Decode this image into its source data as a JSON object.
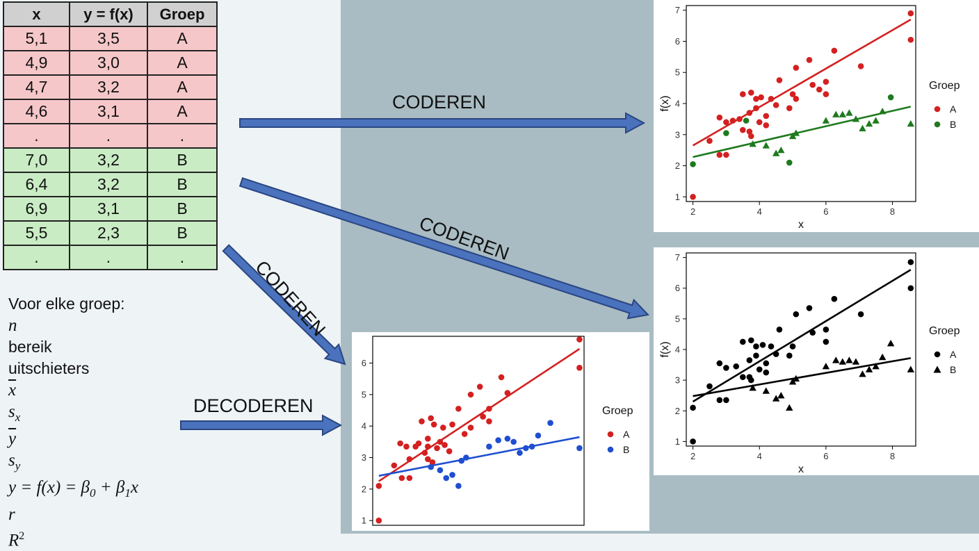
{
  "table": {
    "headers": [
      "x",
      "y = f(x)",
      "Groep"
    ],
    "rows": [
      {
        "group": "A",
        "cells": [
          "5,1",
          "3,5",
          "A"
        ]
      },
      {
        "group": "A",
        "cells": [
          "4,9",
          "3,0",
          "A"
        ]
      },
      {
        "group": "A",
        "cells": [
          "4,7",
          "3,2",
          "A"
        ]
      },
      {
        "group": "A",
        "cells": [
          "4,6",
          "3,1",
          "A"
        ]
      },
      {
        "group": "A",
        "cells": [
          ".",
          ".",
          "."
        ]
      },
      {
        "group": "B",
        "cells": [
          "7,0",
          "3,2",
          "B"
        ]
      },
      {
        "group": "B",
        "cells": [
          "6,4",
          "3,2",
          "B"
        ]
      },
      {
        "group": "B",
        "cells": [
          "6,9",
          "3,1",
          "B"
        ]
      },
      {
        "group": "B",
        "cells": [
          "5,5",
          "2,3",
          "B"
        ]
      },
      {
        "group": "B",
        "cells": [
          ".",
          ".",
          "."
        ]
      }
    ]
  },
  "stats": {
    "heading": "Voor elke groep:",
    "n": "n",
    "range": "bereik",
    "outliers": "uitschieters",
    "xbar_var": "x",
    "sx_var": "s",
    "sx_sub": "x",
    "ybar_var": "y",
    "sy_var": "s",
    "sy_sub": "y",
    "regression": "y = f(x) = β",
    "beta0_sub": "0",
    "plus": " + β",
    "beta1_sub": "1",
    "x_var": "x",
    "r": "r",
    "R": "R",
    "R_sup": "2"
  },
  "arrows": {
    "top_label": "CODEREN",
    "diagonal_label": "CODEREN",
    "down_label": "CODEREN",
    "decode_label": "DECODEREN"
  },
  "colors": {
    "group_a": "#d42020",
    "group_b_green": "#1e7a1e",
    "group_b_blue": "#1f4fd0",
    "black": "#000000",
    "arrow_fill": "#4a72bd",
    "arrow_stroke": "#2a4580"
  },
  "chart_data": [
    {
      "id": "top-right",
      "type": "scatter",
      "title": "",
      "xlabel": "x",
      "ylabel": "f(x)",
      "xlim": [
        1.8,
        8.7
      ],
      "ylim": [
        0.85,
        7.15
      ],
      "xticks": [
        2,
        4,
        6,
        8
      ],
      "yticks": [
        1,
        2,
        3,
        4,
        5,
        6,
        7
      ],
      "legend_title": "Groep",
      "series": [
        {
          "name": "A",
          "color": "#d42020",
          "marker": "circle",
          "line": [
            [
              2.0,
              2.65
            ],
            [
              8.55,
              6.7
            ]
          ],
          "points": [
            [
              2.0,
              1.0
            ],
            [
              2.5,
              2.8
            ],
            [
              2.8,
              3.55
            ],
            [
              2.8,
              2.35
            ],
            [
              3.0,
              2.35
            ],
            [
              3.0,
              3.4
            ],
            [
              3.2,
              3.45
            ],
            [
              3.4,
              3.5
            ],
            [
              3.5,
              4.3
            ],
            [
              3.5,
              3.15
            ],
            [
              3.7,
              3.7
            ],
            [
              3.7,
              3.1
            ],
            [
              3.75,
              4.35
            ],
            [
              3.75,
              2.95
            ],
            [
              3.9,
              4.15
            ],
            [
              3.9,
              3.85
            ],
            [
              4.0,
              3.4
            ],
            [
              4.05,
              4.2
            ],
            [
              4.2,
              3.3
            ],
            [
              4.2,
              3.6
            ],
            [
              4.35,
              4.15
            ],
            [
              4.5,
              3.95
            ],
            [
              4.6,
              4.75
            ],
            [
              4.9,
              3.85
            ],
            [
              5.0,
              4.3
            ],
            [
              5.1,
              5.15
            ],
            [
              5.1,
              4.15
            ],
            [
              5.5,
              5.4
            ],
            [
              5.6,
              4.6
            ],
            [
              5.8,
              4.45
            ],
            [
              6.0,
              4.3
            ],
            [
              6.0,
              4.7
            ],
            [
              6.25,
              5.7
            ],
            [
              7.05,
              5.2
            ],
            [
              8.55,
              6.9
            ],
            [
              8.55,
              6.05
            ]
          ]
        },
        {
          "name": "B",
          "color": "#1e7a1e",
          "marker": "mixed",
          "line": [
            [
              2.0,
              2.28
            ],
            [
              8.55,
              3.9
            ]
          ],
          "points": [
            [
              2.0,
              2.05,
              "c"
            ],
            [
              3.0,
              3.05,
              "c"
            ],
            [
              3.6,
              3.45,
              "c"
            ],
            [
              3.8,
              2.7,
              "t"
            ],
            [
              4.2,
              2.65,
              "t"
            ],
            [
              4.5,
              2.4,
              "t"
            ],
            [
              4.65,
              2.5,
              "t"
            ],
            [
              4.9,
              2.1,
              "c"
            ],
            [
              5.0,
              2.95,
              "t"
            ],
            [
              5.1,
              3.05,
              "t"
            ],
            [
              6.0,
              3.45,
              "t"
            ],
            [
              6.3,
              3.65,
              "t"
            ],
            [
              6.5,
              3.65,
              "t"
            ],
            [
              6.7,
              3.7,
              "t"
            ],
            [
              6.9,
              3.5,
              "t"
            ],
            [
              7.1,
              3.2,
              "t"
            ],
            [
              7.3,
              3.35,
              "t"
            ],
            [
              7.5,
              3.45,
              "t"
            ],
            [
              7.7,
              3.75,
              "t"
            ],
            [
              7.95,
              4.2,
              "c"
            ],
            [
              8.55,
              3.35,
              "t"
            ]
          ]
        }
      ]
    },
    {
      "id": "mid-right",
      "type": "scatter",
      "title": "",
      "xlabel": "x",
      "ylabel": "f(x)",
      "xlim": [
        1.8,
        8.7
      ],
      "ylim": [
        0.85,
        7.15
      ],
      "xticks": [
        2,
        4,
        6,
        8
      ],
      "yticks": [
        1,
        2,
        3,
        4,
        5,
        6,
        7
      ],
      "legend_title": "Groep",
      "series": [
        {
          "name": "A",
          "color": "#000000",
          "marker": "circle",
          "line": [
            [
              2.0,
              2.3
            ],
            [
              8.55,
              6.6
            ]
          ],
          "points": [
            [
              2.0,
              1.0
            ],
            [
              2.0,
              2.1
            ],
            [
              2.5,
              2.8
            ],
            [
              2.8,
              3.55
            ],
            [
              2.8,
              2.35
            ],
            [
              3.0,
              2.35
            ],
            [
              3.0,
              3.4
            ],
            [
              3.3,
              3.45
            ],
            [
              3.5,
              4.25
            ],
            [
              3.5,
              3.1
            ],
            [
              3.7,
              3.65
            ],
            [
              3.7,
              3.1
            ],
            [
              3.75,
              4.3
            ],
            [
              3.75,
              3.0
            ],
            [
              3.9,
              4.1
            ],
            [
              3.9,
              3.8
            ],
            [
              4.0,
              3.35
            ],
            [
              4.1,
              4.15
            ],
            [
              4.2,
              3.25
            ],
            [
              4.2,
              3.55
            ],
            [
              4.35,
              4.1
            ],
            [
              4.5,
              3.85
            ],
            [
              4.6,
              4.65
            ],
            [
              4.9,
              3.8
            ],
            [
              5.0,
              4.1
            ],
            [
              5.1,
              5.15
            ],
            [
              5.5,
              5.35
            ],
            [
              5.6,
              4.55
            ],
            [
              6.0,
              4.25
            ],
            [
              6.0,
              4.65
            ],
            [
              6.25,
              5.65
            ],
            [
              7.05,
              5.15
            ],
            [
              8.55,
              6.85
            ],
            [
              8.55,
              6.0
            ]
          ]
        },
        {
          "name": "B",
          "color": "#000000",
          "marker": "triangle",
          "line": [
            [
              2.0,
              2.48
            ],
            [
              8.55,
              3.72
            ]
          ],
          "points": [
            [
              3.8,
              2.75
            ],
            [
              4.2,
              2.65
            ],
            [
              4.5,
              2.4
            ],
            [
              4.65,
              2.5
            ],
            [
              4.9,
              2.1
            ],
            [
              5.0,
              2.95
            ],
            [
              5.1,
              3.05
            ],
            [
              6.0,
              3.45
            ],
            [
              6.3,
              3.65
            ],
            [
              6.5,
              3.6
            ],
            [
              6.7,
              3.65
            ],
            [
              6.9,
              3.6
            ],
            [
              7.1,
              3.2
            ],
            [
              7.3,
              3.35
            ],
            [
              7.5,
              3.45
            ],
            [
              7.7,
              3.75
            ],
            [
              7.95,
              4.2
            ],
            [
              8.55,
              3.35
            ]
          ]
        }
      ]
    },
    {
      "id": "bottom-center",
      "type": "scatter",
      "title": "",
      "xlabel": "",
      "ylabel": "",
      "xlim": [
        1.8,
        8.7
      ],
      "ylim": [
        0.85,
        6.85
      ],
      "xticks": [],
      "yticks": [
        1,
        2,
        3,
        4,
        5,
        6
      ],
      "legend_title": "Groep",
      "series": [
        {
          "name": "A",
          "color": "#d42020",
          "marker": "circle",
          "line": [
            [
              2.0,
              2.25
            ],
            [
              8.55,
              6.45
            ]
          ],
          "points": [
            [
              2.0,
              1.0
            ],
            [
              2.0,
              2.1
            ],
            [
              2.5,
              2.75
            ],
            [
              2.7,
              3.45
            ],
            [
              2.75,
              2.35
            ],
            [
              2.9,
              3.35
            ],
            [
              3.0,
              2.35
            ],
            [
              3.0,
              2.95
            ],
            [
              3.2,
              3.35
            ],
            [
              3.3,
              3.45
            ],
            [
              3.4,
              4.15
            ],
            [
              3.5,
              3.15
            ],
            [
              3.6,
              3.6
            ],
            [
              3.6,
              3.35
            ],
            [
              3.6,
              2.95
            ],
            [
              3.7,
              4.25
            ],
            [
              3.75,
              2.85
            ],
            [
              3.8,
              4.05
            ],
            [
              3.9,
              3.3
            ],
            [
              4.0,
              3.5
            ],
            [
              4.1,
              3.95
            ],
            [
              4.15,
              3.4
            ],
            [
              4.3,
              3.2
            ],
            [
              4.4,
              4.05
            ],
            [
              4.6,
              4.55
            ],
            [
              4.8,
              3.75
            ],
            [
              5.0,
              3.95
            ],
            [
              5.0,
              5.0
            ],
            [
              5.3,
              5.25
            ],
            [
              5.4,
              4.3
            ],
            [
              5.6,
              4.55
            ],
            [
              5.6,
              4.15
            ],
            [
              6.0,
              5.55
            ],
            [
              6.2,
              5.05
            ],
            [
              8.55,
              6.75
            ],
            [
              8.55,
              5.85
            ]
          ]
        },
        {
          "name": "B",
          "color": "#1f4fd0",
          "marker": "circle",
          "line": [
            [
              2.0,
              2.42
            ],
            [
              8.55,
              3.65
            ]
          ],
          "points": [
            [
              3.7,
              2.7
            ],
            [
              4.0,
              2.6
            ],
            [
              4.2,
              2.35
            ],
            [
              4.4,
              2.45
            ],
            [
              4.6,
              2.1
            ],
            [
              4.7,
              2.9
            ],
            [
              4.85,
              3.0
            ],
            [
              5.6,
              3.35
            ],
            [
              5.9,
              3.55
            ],
            [
              6.2,
              3.6
            ],
            [
              6.4,
              3.5
            ],
            [
              6.6,
              3.15
            ],
            [
              6.8,
              3.3
            ],
            [
              7.0,
              3.35
            ],
            [
              7.2,
              3.7
            ],
            [
              7.6,
              4.1
            ],
            [
              8.55,
              3.3
            ]
          ]
        }
      ]
    }
  ]
}
